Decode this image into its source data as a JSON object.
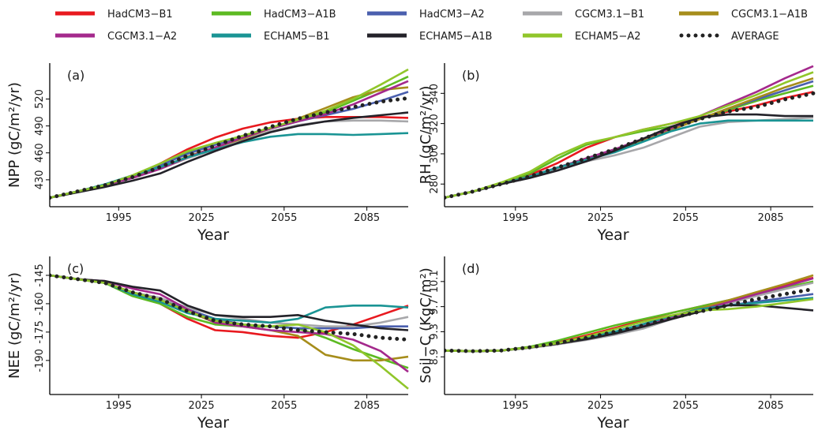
{
  "chart_data": [
    {
      "type": "line",
      "label": "(a)",
      "xlabel": "Year",
      "ylabel": "NPP (gC/m²/yr)",
      "x": [
        1970,
        1980,
        1990,
        2000,
        2010,
        2020,
        2030,
        2040,
        2050,
        2060,
        2070,
        2080,
        2090,
        2100
      ],
      "xlim": [
        1970,
        2100
      ],
      "xticks": [
        1995,
        2025,
        2055,
        2085
      ],
      "ylim": [
        400,
        560
      ],
      "yticks": [
        430,
        460,
        490,
        520
      ],
      "series": [
        {
          "name": "HadCM3−B1",
          "color": "#e8191f",
          "values": [
            410,
            417,
            424,
            434,
            448,
            464,
            477,
            487,
            494,
            498,
            500,
            500,
            500,
            499
          ]
        },
        {
          "name": "HadCM3−A1B",
          "color": "#5cba22",
          "values": [
            410,
            417,
            424,
            434,
            446,
            460,
            470,
            479,
            487,
            495,
            505,
            518,
            531,
            545
          ]
        },
        {
          "name": "HadCM3−A2",
          "color": "#4a5fae",
          "values": [
            410,
            417,
            424,
            434,
            446,
            459,
            469,
            478,
            487,
            495,
            502,
            509,
            518,
            528
          ]
        },
        {
          "name": "CGCM3.1−B1",
          "color": "#a7a7aa",
          "values": [
            410,
            417,
            424,
            432,
            442,
            454,
            464,
            474,
            484,
            491,
            495,
            496,
            496,
            495
          ]
        },
        {
          "name": "CGCM3.1−A1B",
          "color": "#a68d1b",
          "values": [
            410,
            417,
            424,
            433,
            443,
            456,
            466,
            476,
            487,
            498,
            510,
            522,
            530,
            533
          ]
        },
        {
          "name": "CGCM3.1−A2",
          "color": "#a4298c",
          "values": [
            410,
            417,
            424,
            432,
            442,
            455,
            466,
            477,
            487,
            495,
            503,
            514,
            527,
            540
          ]
        },
        {
          "name": "ECHAM5−B1",
          "color": "#1a9494",
          "values": [
            410,
            417,
            425,
            435,
            444,
            455,
            464,
            472,
            478,
            481,
            481,
            480,
            481,
            482
          ]
        },
        {
          "name": "ECHAM5−A1B",
          "color": "#232229",
          "values": [
            410,
            416,
            422,
            429,
            437,
            450,
            462,
            473,
            483,
            490,
            495,
            499,
            502,
            505
          ]
        },
        {
          "name": "ECHAM5−A2",
          "color": "#90c62a",
          "values": [
            410,
            417,
            424,
            435,
            448,
            462,
            471,
            479,
            488,
            497,
            507,
            520,
            536,
            553
          ]
        },
        {
          "name": "AVERAGE",
          "color": "#222222",
          "style": "dotted",
          "values": [
            410,
            417,
            424,
            433,
            444,
            457,
            468,
            479,
            489,
            498,
            505,
            511,
            517,
            521
          ]
        }
      ]
    },
    {
      "type": "line",
      "label": "(b)",
      "xlabel": "Year",
      "ylabel": "RH (gC/m²/yr)",
      "x": [
        1970,
        1980,
        1990,
        2000,
        2010,
        2020,
        2030,
        2040,
        2050,
        2060,
        2070,
        2080,
        2090,
        2100
      ],
      "xlim": [
        1970,
        2100
      ],
      "xticks": [
        1995,
        2025,
        2055,
        2085
      ],
      "ylim": [
        265,
        360
      ],
      "yticks": [
        280,
        300,
        320,
        340
      ],
      "series": [
        {
          "color": "#e8191f",
          "values": [
            271,
            275,
            280,
            286,
            294,
            304,
            311,
            316,
            320,
            324,
            328,
            332,
            337,
            341
          ]
        },
        {
          "color": "#5cba22",
          "values": [
            271,
            275,
            280,
            287,
            297,
            306,
            311,
            315,
            318,
            323,
            329,
            335,
            340,
            345
          ]
        },
        {
          "color": "#4a5fae",
          "values": [
            271,
            275,
            280,
            285,
            291,
            297,
            303,
            309,
            316,
            323,
            330,
            336,
            342,
            348
          ]
        },
        {
          "color": "#a7a7aa",
          "values": [
            271,
            275,
            280,
            285,
            290,
            295,
            299,
            304,
            311,
            318,
            321,
            322,
            323,
            324
          ]
        },
        {
          "color": "#a68d1b",
          "values": [
            271,
            275,
            280,
            285,
            291,
            297,
            302,
            309,
            316,
            323,
            330,
            337,
            344,
            350
          ]
        },
        {
          "color": "#a4298c",
          "values": [
            271,
            275,
            280,
            285,
            291,
            297,
            303,
            310,
            317,
            325,
            333,
            341,
            350,
            358
          ]
        },
        {
          "color": "#1a9494",
          "values": [
            271,
            275,
            280,
            285,
            291,
            296,
            301,
            308,
            315,
            320,
            322,
            322,
            322,
            322
          ]
        },
        {
          "color": "#232229",
          "values": [
            271,
            275,
            280,
            284,
            289,
            295,
            302,
            310,
            318,
            324,
            326,
            326,
            325,
            325
          ]
        },
        {
          "color": "#90c62a",
          "values": [
            271,
            275,
            281,
            288,
            299,
            307,
            311,
            316,
            320,
            325,
            332,
            339,
            347,
            354
          ]
        },
        {
          "color": "#222222",
          "style": "dotted",
          "values": [
            271,
            275,
            280,
            285,
            291,
            297,
            303,
            310,
            317,
            323,
            328,
            331,
            336,
            340
          ]
        }
      ]
    },
    {
      "type": "line",
      "label": "(c)",
      "xlabel": "Year",
      "ylabel": "NEE (gC/m²/yr)",
      "x": [
        1970,
        1980,
        1990,
        2000,
        2010,
        2020,
        2030,
        2040,
        2050,
        2060,
        2070,
        2080,
        2090,
        2100
      ],
      "xlim": [
        1970,
        2100
      ],
      "xticks": [
        1995,
        2025,
        2055,
        2085
      ],
      "ylim": [
        -208,
        -135
      ],
      "yticks": [
        -190,
        -175,
        -160,
        -145
      ],
      "series": [
        {
          "color": "#e8191f",
          "values": [
            -145,
            -147,
            -149,
            -154,
            -160,
            -168,
            -174,
            -175,
            -177,
            -178,
            -175,
            -171,
            -166,
            -161
          ]
        },
        {
          "color": "#5cba22",
          "values": [
            -145,
            -147,
            -149,
            -156,
            -160,
            -167,
            -171,
            -172,
            -172,
            -173,
            -178,
            -184,
            -189,
            -194
          ]
        },
        {
          "color": "#4a5fae",
          "values": [
            -145,
            -147,
            -149,
            -154,
            -157,
            -163,
            -168,
            -171,
            -172,
            -173,
            -173,
            -173,
            -172,
            -172
          ]
        },
        {
          "color": "#a7a7aa",
          "values": [
            -145,
            -147,
            -149,
            -154,
            -157,
            -162,
            -166,
            -168,
            -170,
            -171,
            -172,
            -172,
            -170,
            -167
          ]
        },
        {
          "color": "#a68d1b",
          "values": [
            -145,
            -147,
            -149,
            -154,
            -158,
            -164,
            -170,
            -172,
            -174,
            -177,
            -187,
            -190,
            -190,
            -188
          ]
        },
        {
          "color": "#a4298c",
          "values": [
            -145,
            -147,
            -148,
            -152,
            -155,
            -163,
            -170,
            -172,
            -174,
            -175,
            -176,
            -179,
            -185,
            -196
          ]
        },
        {
          "color": "#1a9494",
          "values": [
            -145,
            -147,
            -149,
            -155,
            -159,
            -165,
            -168,
            -169,
            -170,
            -168,
            -162,
            -161,
            -161,
            -162
          ]
        },
        {
          "color": "#232229",
          "values": [
            -145,
            -147,
            -148,
            -151,
            -153,
            -161,
            -166,
            -167,
            -167,
            -166,
            -169,
            -171,
            -173,
            -174
          ]
        },
        {
          "color": "#90c62a",
          "values": [
            -145,
            -147,
            -149,
            -154,
            -158,
            -164,
            -169,
            -171,
            -172,
            -171,
            -175,
            -182,
            -193,
            -205
          ]
        },
        {
          "color": "#222222",
          "style": "dotted",
          "values": [
            -145,
            -147,
            -149,
            -154,
            -157.5,
            -164,
            -169,
            -171,
            -172,
            -174,
            -175,
            -176,
            -178,
            -179
          ]
        }
      ]
    },
    {
      "type": "line",
      "label": "(d)",
      "xlabel": "Year",
      "ylabel": "Soil−C (KgC/m²)",
      "x": [
        1970,
        1980,
        1990,
        2000,
        2010,
        2020,
        2030,
        2040,
        2050,
        2060,
        2070,
        2080,
        2090,
        2100
      ],
      "xlim": [
        1970,
        2100
      ],
      "xticks": [
        1995,
        2025,
        2055,
        2085
      ],
      "ylim": [
        8.3,
        10.5
      ],
      "yticks": [
        8.9,
        9.3,
        9.7,
        10.1
      ],
      "series": [
        {
          "color": "#e8191f",
          "values": [
            9.0,
            8.99,
            9.0,
            9.05,
            9.13,
            9.24,
            9.36,
            9.48,
            9.6,
            9.7,
            9.8,
            9.92,
            10.04,
            10.16
          ]
        },
        {
          "color": "#5cba22",
          "values": [
            9.0,
            8.99,
            9.0,
            9.06,
            9.16,
            9.28,
            9.4,
            9.5,
            9.6,
            9.7,
            9.8,
            9.9,
            10.0,
            10.1
          ]
        },
        {
          "color": "#4a5fae",
          "values": [
            9.0,
            8.99,
            9.0,
            9.05,
            9.12,
            9.2,
            9.3,
            9.4,
            9.52,
            9.63,
            9.72,
            9.78,
            9.84,
            9.9
          ]
        },
        {
          "color": "#a7a7aa",
          "values": [
            9.0,
            8.99,
            9.0,
            9.04,
            9.1,
            9.17,
            9.25,
            9.35,
            9.5,
            9.63,
            9.75,
            9.87,
            9.98,
            10.08
          ]
        },
        {
          "color": "#a68d1b",
          "values": [
            9.0,
            8.99,
            9.0,
            9.05,
            9.12,
            9.2,
            9.3,
            9.42,
            9.55,
            9.67,
            9.8,
            9.93,
            10.06,
            10.2
          ]
        },
        {
          "color": "#a4298c",
          "values": [
            9.0,
            8.99,
            9.0,
            9.05,
            9.11,
            9.19,
            9.28,
            9.39,
            9.52,
            9.64,
            9.77,
            9.9,
            10.02,
            10.15
          ]
        },
        {
          "color": "#1a9494",
          "values": [
            9.0,
            8.99,
            9.0,
            9.05,
            9.12,
            9.2,
            9.3,
            9.42,
            9.55,
            9.66,
            9.72,
            9.76,
            9.8,
            9.84
          ]
        },
        {
          "color": "#232229",
          "values": [
            9.0,
            8.99,
            9.0,
            9.05,
            9.11,
            9.18,
            9.27,
            9.38,
            9.5,
            9.62,
            9.72,
            9.72,
            9.68,
            9.64
          ]
        },
        {
          "color": "#90c62a",
          "values": [
            9.0,
            8.99,
            9.0,
            9.05,
            9.12,
            9.22,
            9.34,
            9.46,
            9.56,
            9.64,
            9.66,
            9.7,
            9.76,
            9.82
          ]
        },
        {
          "color": "#222222",
          "style": "dotted",
          "values": [
            9.0,
            8.99,
            9.0,
            9.05,
            9.12,
            9.2,
            9.3,
            9.4,
            9.52,
            9.62,
            9.72,
            9.82,
            9.9,
            9.98
          ]
        }
      ]
    }
  ]
}
